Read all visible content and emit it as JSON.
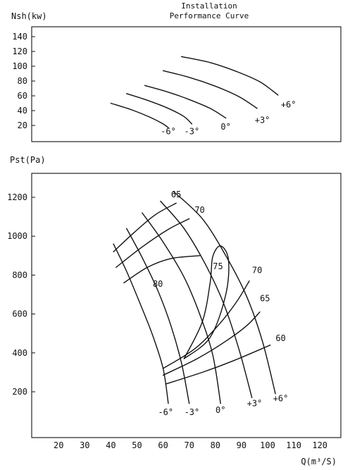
{
  "title_lines": [
    "Installation",
    "Performance Curve"
  ],
  "chart_data": [
    {
      "type": "line",
      "name": "power",
      "ylabel": "Nsh(kw)",
      "xlim": [
        10,
        128
      ],
      "ylim": [
        10,
        150
      ],
      "yticks": [
        20,
        40,
        60,
        80,
        100,
        120,
        140
      ],
      "series": [
        {
          "name": "-6°",
          "points": [
            [
              40,
              50
            ],
            [
              48,
              41
            ],
            [
              55,
              31
            ],
            [
              60,
              22
            ],
            [
              62,
              17
            ]
          ]
        },
        {
          "name": "-3°",
          "points": [
            [
              46,
              63
            ],
            [
              54,
              54
            ],
            [
              62,
              43
            ],
            [
              68,
              32
            ],
            [
              71,
              22
            ]
          ]
        },
        {
          "name": "0°",
          "points": [
            [
              53,
              74
            ],
            [
              62,
              65
            ],
            [
              70,
              55
            ],
            [
              78,
              43
            ],
            [
              84,
              30
            ]
          ]
        },
        {
          "name": "+3°",
          "points": [
            [
              60,
              94
            ],
            [
              70,
              85
            ],
            [
              80,
              73
            ],
            [
              89,
              59
            ],
            [
              96,
              43
            ]
          ]
        },
        {
          "name": "+6°",
          "points": [
            [
              67,
              113
            ],
            [
              78,
              105
            ],
            [
              88,
              93
            ],
            [
              97,
              79
            ],
            [
              104,
              61
            ]
          ]
        }
      ],
      "annotations": [
        {
          "text": "-6°",
          "x": 62,
          "y": 12
        },
        {
          "text": "-3°",
          "x": 71,
          "y": 12
        },
        {
          "text": "0°",
          "x": 84,
          "y": 18
        },
        {
          "text": "+3°",
          "x": 98,
          "y": 27
        },
        {
          "text": "+6°",
          "x": 108,
          "y": 48
        }
      ]
    },
    {
      "type": "line",
      "name": "pressure",
      "ylabel": "Pst(Pa)",
      "xlabel": "Q(m³/S)",
      "xlim": [
        10,
        128
      ],
      "ylim": [
        80,
        1300
      ],
      "xticks": [
        20,
        30,
        40,
        50,
        60,
        70,
        80,
        90,
        100,
        110,
        120
      ],
      "yticks": [
        200,
        400,
        600,
        800,
        1000,
        1200
      ],
      "series": [
        {
          "name": "-6°",
          "points": [
            [
              41,
              960
            ],
            [
              46,
              820
            ],
            [
              51,
              660
            ],
            [
              56,
              490
            ],
            [
              60,
              320
            ],
            [
              62,
              140
            ]
          ]
        },
        {
          "name": "-3°",
          "points": [
            [
              46,
              1040
            ],
            [
              52,
              890
            ],
            [
              58,
              720
            ],
            [
              63,
              540
            ],
            [
              67,
              350
            ],
            [
              70,
              140
            ]
          ]
        },
        {
          "name": "0°",
          "points": [
            [
              52,
              1120
            ],
            [
              60,
              970
            ],
            [
              68,
              790
            ],
            [
              74,
              600
            ],
            [
              79,
              390
            ],
            [
              82,
              140
            ]
          ]
        },
        {
          "name": "+3°",
          "points": [
            [
              59,
              1180
            ],
            [
              68,
              1040
            ],
            [
              76,
              860
            ],
            [
              83,
              660
            ],
            [
              89,
              420
            ],
            [
              94,
              170
            ]
          ]
        },
        {
          "name": "+6°",
          "points": [
            [
              64,
              1230
            ],
            [
              75,
              1090
            ],
            [
              84,
              900
            ],
            [
              92,
              690
            ],
            [
              98,
              460
            ],
            [
              103,
              190
            ]
          ]
        }
      ],
      "efficiency_curves": [
        {
          "label": "65",
          "points": [
            [
              41,
              920
            ],
            [
              49,
              1020
            ],
            [
              57,
              1110
            ],
            [
              65,
              1170
            ]
          ]
        },
        {
          "label": "70",
          "points": [
            [
              42,
              840
            ],
            [
              52,
              945
            ],
            [
              62,
              1035
            ],
            [
              70,
              1090
            ]
          ]
        },
        {
          "label": "80",
          "points": [
            [
              45,
              760
            ],
            [
              54,
              840
            ],
            [
              63,
              885
            ],
            [
              74,
              900
            ]
          ]
        },
        {
          "label": "70",
          "points": [
            [
              60,
              320
            ],
            [
              72,
              420
            ],
            [
              81,
              540
            ],
            [
              88,
              660
            ],
            [
              93,
              770
            ]
          ]
        },
        {
          "label": "65",
          "points": [
            [
              60,
              285
            ],
            [
              73,
              370
            ],
            [
              84,
              460
            ],
            [
              92,
              540
            ],
            [
              97,
              610
            ]
          ]
        },
        {
          "label": "60",
          "points": [
            [
              61,
              240
            ],
            [
              75,
              300
            ],
            [
              87,
              360
            ],
            [
              101,
              440
            ]
          ]
        }
      ],
      "efficiency_island": {
        "label": "75",
        "points": [
          [
            68,
            370
          ],
          [
            75,
            560
          ],
          [
            78,
            760
          ],
          [
            79,
            895
          ],
          [
            82,
            950
          ],
          [
            85,
            880
          ],
          [
            84,
            700
          ],
          [
            78,
            480
          ],
          [
            68,
            370
          ]
        ]
      },
      "annotations": [
        {
          "text": "65",
          "x": 65,
          "y": 1215
        },
        {
          "text": "70",
          "x": 74,
          "y": 1135
        },
        {
          "text": "75",
          "x": 81,
          "y": 845
        },
        {
          "text": "80",
          "x": 58,
          "y": 755
        },
        {
          "text": "70",
          "x": 96,
          "y": 825
        },
        {
          "text": "65",
          "x": 99,
          "y": 680
        },
        {
          "text": "60",
          "x": 105,
          "y": 475
        },
        {
          "text": "-6°",
          "x": 61,
          "y": 95
        },
        {
          "text": "-3°",
          "x": 71,
          "y": 95
        },
        {
          "text": "0°",
          "x": 82,
          "y": 105
        },
        {
          "text": "+3°",
          "x": 95,
          "y": 140
        },
        {
          "text": "+6°",
          "x": 105,
          "y": 165
        }
      ]
    }
  ]
}
